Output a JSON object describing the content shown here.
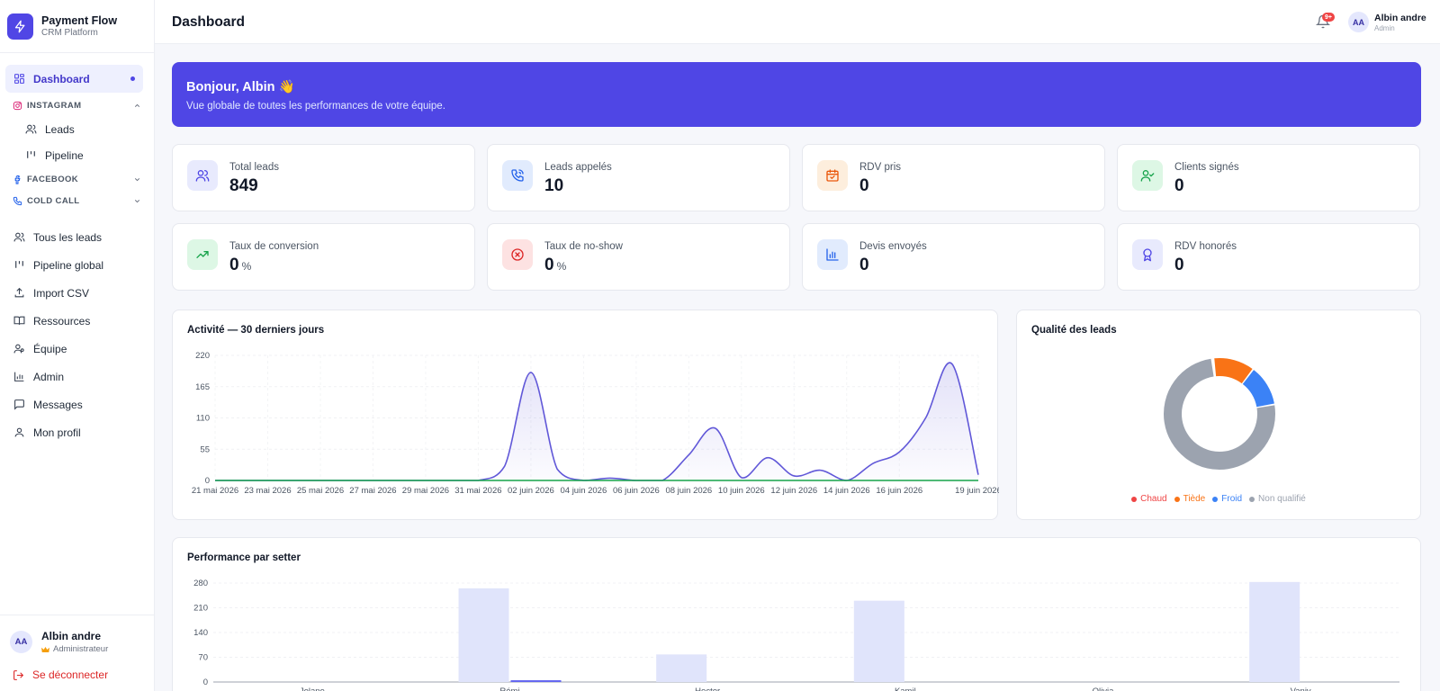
{
  "brand": {
    "name": "Payment Flow",
    "subtitle": "CRM Platform"
  },
  "sidebar": {
    "dashboard": "Dashboard",
    "instagram": {
      "label": "INSTAGRAM",
      "items": [
        "Leads",
        "Pipeline"
      ]
    },
    "facebook": "FACEBOOK",
    "cold_call": "COLD CALL",
    "main_items": [
      "Tous les leads",
      "Pipeline global",
      "Import CSV",
      "Ressources",
      "Équipe",
      "Admin",
      "Messages",
      "Mon profil"
    ],
    "user": {
      "initials": "AA",
      "name": "Albin andre",
      "role": "Administrateur"
    },
    "logout": "Se déconnecter"
  },
  "header": {
    "title": "Dashboard",
    "notifications": "9+",
    "user": {
      "initials": "AA",
      "name": "Albin andre",
      "role": "Admin"
    }
  },
  "banner": {
    "title": "Bonjour, Albin 👋",
    "subtitle": "Vue globale de toutes les performances de votre équipe."
  },
  "stats": [
    {
      "label": "Total leads",
      "value": "849",
      "unit": "",
      "icon": "users-icon",
      "color": "#4f46e5",
      "bg": "#e8eafd"
    },
    {
      "label": "Leads appelés",
      "value": "10",
      "unit": "",
      "icon": "phone-call-icon",
      "color": "#2563eb",
      "bg": "#e1ebfd"
    },
    {
      "label": "RDV pris",
      "value": "0",
      "unit": "",
      "icon": "calendar-check-icon",
      "color": "#ea580c",
      "bg": "#fdeedd"
    },
    {
      "label": "Clients signés",
      "value": "0",
      "unit": "",
      "icon": "user-check-icon",
      "color": "#16a34a",
      "bg": "#ddf7e5"
    },
    {
      "label": "Taux de conversion",
      "value": "0",
      "unit": "%",
      "icon": "trending-up-icon",
      "color": "#16a34a",
      "bg": "#ddf7e5"
    },
    {
      "label": "Taux de no-show",
      "value": "0",
      "unit": "%",
      "icon": "x-circle-icon",
      "color": "#dc2626",
      "bg": "#fde2e2"
    },
    {
      "label": "Devis envoyés",
      "value": "0",
      "unit": "",
      "icon": "bar-chart-icon",
      "color": "#2563eb",
      "bg": "#e1ebfd"
    },
    {
      "label": "RDV honorés",
      "value": "0",
      "unit": "",
      "icon": "award-icon",
      "color": "#4f46e5",
      "bg": "#e8eafd"
    }
  ],
  "activity": {
    "title": "Activité — 30 derniers jours"
  },
  "quality": {
    "title": "Qualité des leads"
  },
  "performance": {
    "title": "Performance par setter"
  },
  "chart_data": [
    {
      "type": "area",
      "title": "Activité — 30 derniers jours",
      "ylim": [
        0,
        220
      ],
      "yticks": [
        0,
        55,
        110,
        165,
        220
      ],
      "x": [
        "21 mai 2026",
        "22 mai 2026",
        "23 mai 2026",
        "24 mai 2026",
        "25 mai 2026",
        "26 mai 2026",
        "27 mai 2026",
        "28 mai 2026",
        "29 mai 2026",
        "30 mai 2026",
        "31 mai 2026",
        "01 juin 2026",
        "02 juin 2026",
        "03 juin 2026",
        "04 juin 2026",
        "05 juin 2026",
        "06 juin 2026",
        "07 juin 2026",
        "08 juin 2026",
        "09 juin 2026",
        "10 juin 2026",
        "11 juin 2026",
        "12 juin 2026",
        "13 juin 2026",
        "14 juin 2026",
        "15 juin 2026",
        "16 juin 2026",
        "17 juin 2026",
        "18 juin 2026",
        "19 juin 2026"
      ],
      "xtick_labels": [
        "21 mai 2026",
        "23 mai 2026",
        "25 mai 2026",
        "27 mai 2026",
        "29 mai 2026",
        "31 mai 2026",
        "02 juin 2026",
        "04 juin 2026",
        "06 juin 2026",
        "08 juin 2026",
        "10 juin 2026",
        "12 juin 2026",
        "14 juin 2026",
        "16 juin 2026",
        "19 juin 2026"
      ],
      "series": [
        {
          "color": "#6158d8",
          "values": [
            0,
            0,
            0,
            0,
            0,
            0,
            0,
            0,
            0,
            0,
            0,
            25,
            190,
            20,
            0,
            4,
            0,
            0,
            45,
            92,
            5,
            40,
            8,
            18,
            0,
            30,
            50,
            110,
            205,
            10
          ]
        },
        {
          "color": "#16a34a",
          "values": [
            0,
            0,
            0,
            0,
            0,
            0,
            0,
            0,
            0,
            0,
            0,
            0,
            0,
            0,
            0,
            0,
            0,
            0,
            0,
            0,
            0,
            0,
            0,
            0,
            0,
            0,
            0,
            0,
            0,
            0
          ]
        }
      ]
    },
    {
      "type": "pie",
      "title": "Qualité des leads",
      "labels": [
        "Chaud",
        "Tiède",
        "Froid",
        "Non qualifié"
      ],
      "values": [
        0.5,
        12,
        12,
        75.5
      ],
      "colors": [
        "#ef4444",
        "#f97316",
        "#3b82f6",
        "#9ca3af"
      ]
    },
    {
      "type": "bar",
      "title": "Performance par setter",
      "categories": [
        "Jolane",
        "Rémi",
        "Hector",
        "Kamil",
        "Olivia",
        "Vaniy"
      ],
      "ylim": [
        0,
        280
      ],
      "yticks": [
        0,
        70,
        140,
        210,
        280
      ],
      "series": [
        {
          "color": "#e0e4fb",
          "values": [
            0,
            265,
            78,
            230,
            0,
            283
          ]
        },
        {
          "color": "#6366f1",
          "values": [
            0,
            5,
            0,
            0,
            0,
            0
          ]
        }
      ]
    }
  ]
}
